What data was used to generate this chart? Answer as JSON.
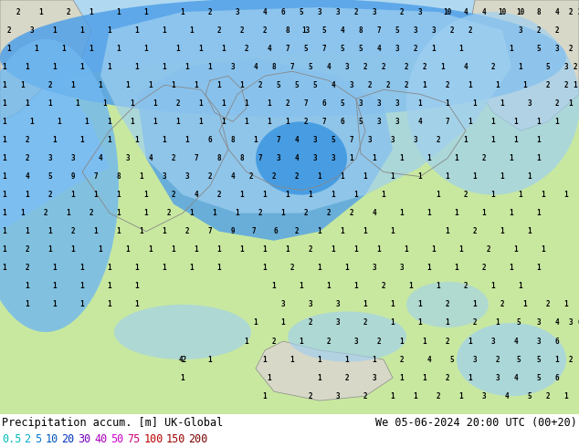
{
  "title_left": "Precipitation accum. [m] UK-Global",
  "title_right": "We 05-06-2024 20:00 UTC (00+20)",
  "colorbar_labels": [
    "0.5",
    "2",
    "5",
    "10",
    "20",
    "30",
    "40",
    "50",
    "75",
    "100",
    "150",
    "200"
  ],
  "label_colors": [
    "#00bbbb",
    "#00aacc",
    "#0077cc",
    "#0055bb",
    "#0033bb",
    "#7700bb",
    "#aa00bb",
    "#cc00cc",
    "#cc0077",
    "#bb0000",
    "#990000",
    "#770000"
  ],
  "bg_color": "#ffffff",
  "land_color": "#c8e8a0",
  "sea_color": "#b0d8f0",
  "precip_light": "#a0d0f0",
  "precip_mid": "#70b8f0",
  "precip_dark": "#50a0e8",
  "precip_strong": "#3090e0",
  "gray_land": "#d8d8c8",
  "border_color": "#888888",
  "title_fontsize": 8.5,
  "label_fontsize": 8.5,
  "map_numbers_color": "#000000",
  "map_numbers_fontsize": 5.5
}
